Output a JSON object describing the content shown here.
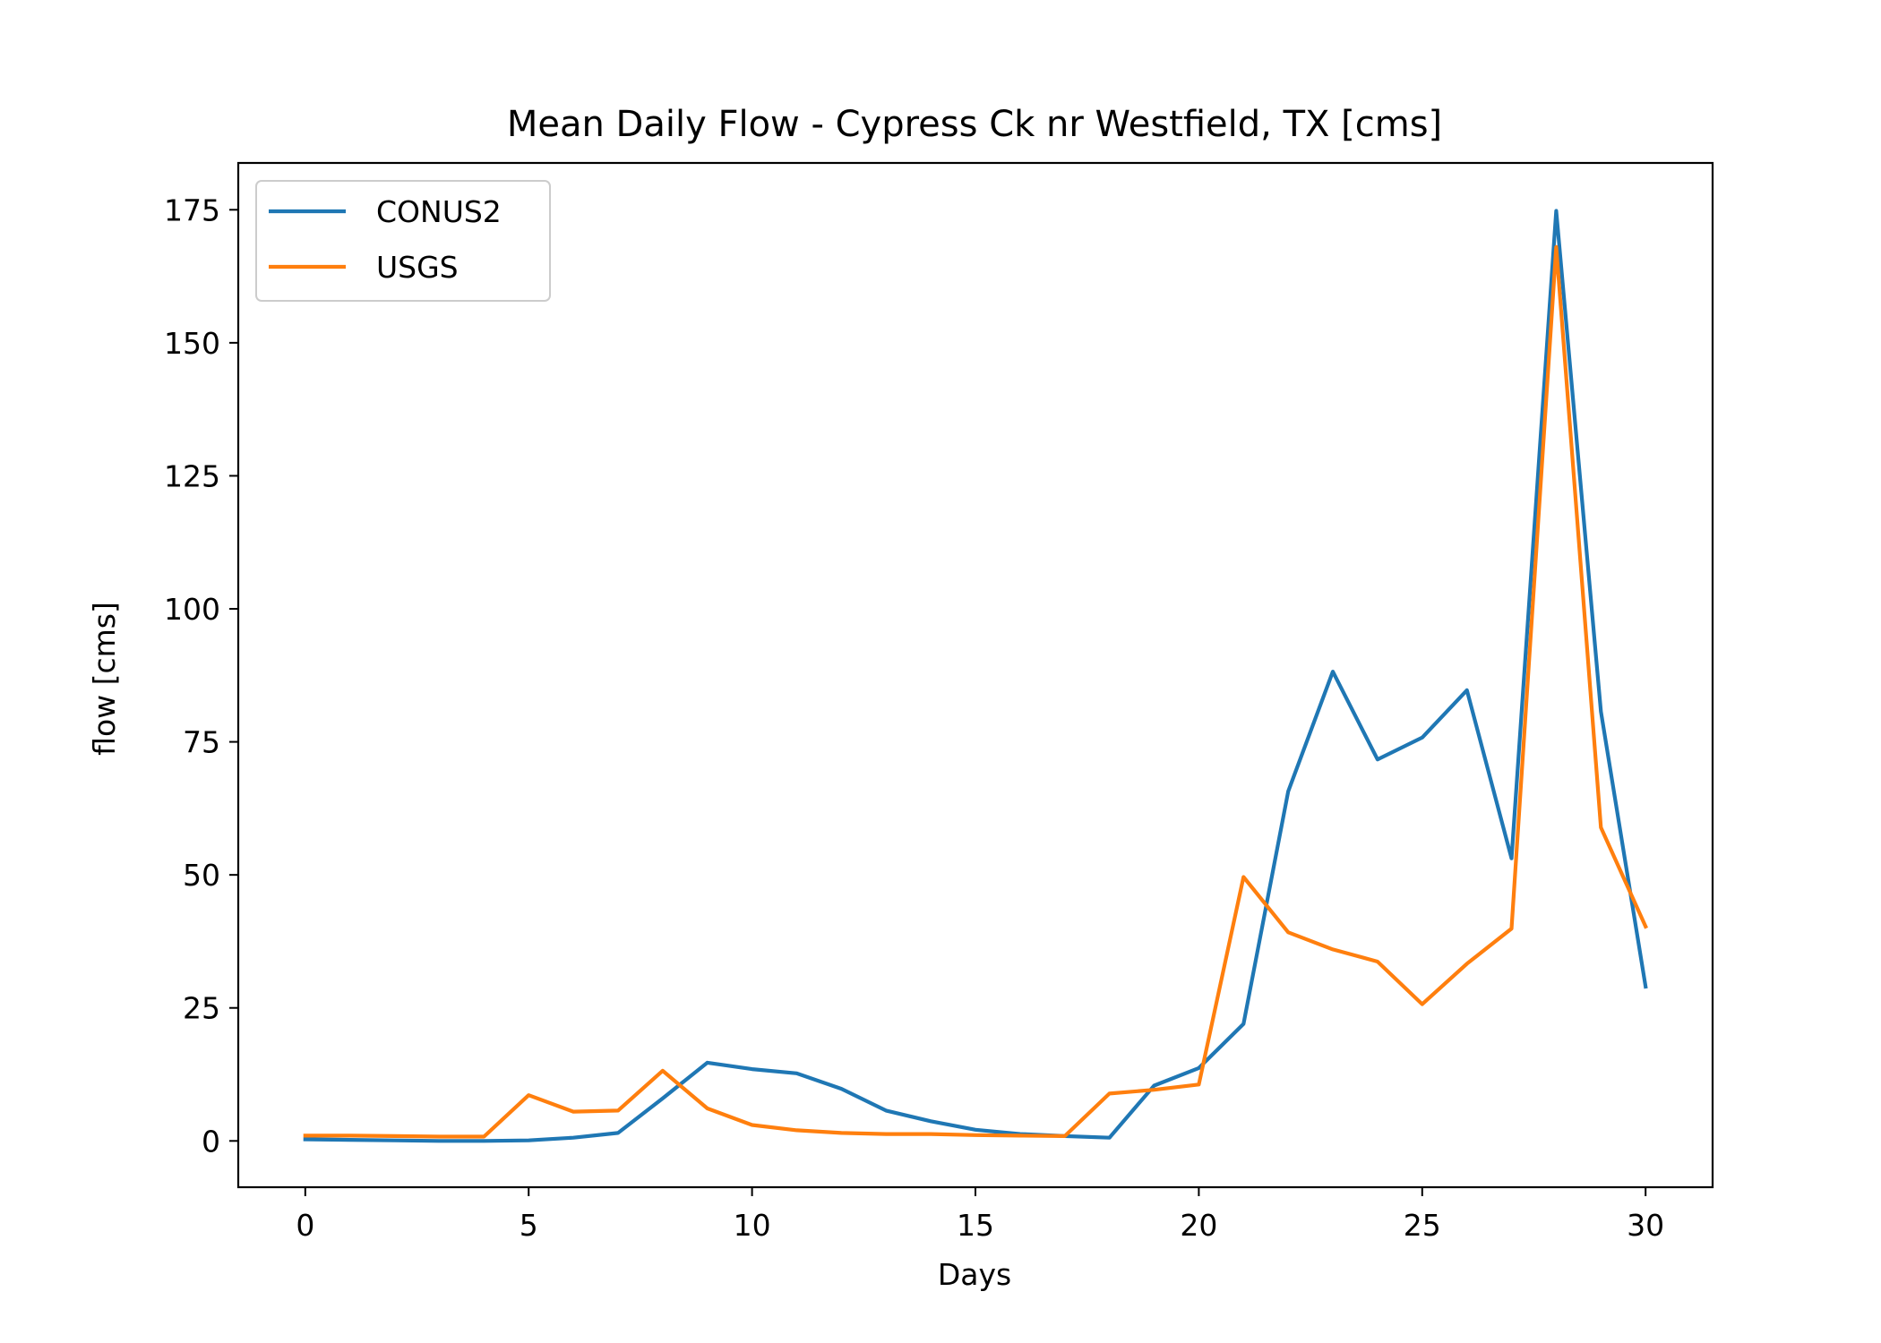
{
  "chart_data": {
    "type": "line",
    "title": "Mean Daily Flow - Cypress Ck nr Westfield, TX [cms]",
    "xlabel": "Days",
    "ylabel": "flow [cms]",
    "xlim": [
      -1.5,
      31.5
    ],
    "ylim": [
      -8.7,
      183.8
    ],
    "xticks": [
      0,
      5,
      10,
      15,
      20,
      25,
      30
    ],
    "yticks": [
      0,
      25,
      50,
      75,
      100,
      125,
      150,
      175
    ],
    "grid": false,
    "legend_position": "upper-left",
    "x": [
      0,
      1,
      2,
      3,
      4,
      5,
      6,
      7,
      8,
      9,
      10,
      11,
      12,
      13,
      14,
      15,
      16,
      17,
      18,
      19,
      20,
      21,
      22,
      23,
      24,
      25,
      26,
      27,
      28,
      29,
      30
    ],
    "series": [
      {
        "name": "CONUS2",
        "color": "#1f77b4",
        "values": [
          0.3,
          0.2,
          0.1,
          0.0,
          0.0,
          0.1,
          0.6,
          1.5,
          8.0,
          14.7,
          13.5,
          12.7,
          9.8,
          5.7,
          3.7,
          2.1,
          1.3,
          0.9,
          0.6,
          10.4,
          13.7,
          22.0,
          65.7,
          88.2,
          71.7,
          75.8,
          84.7,
          53.1,
          174.8,
          80.7,
          29.0
        ]
      },
      {
        "name": "USGS",
        "color": "#ff7f0e",
        "values": [
          1.0,
          1.0,
          0.9,
          0.8,
          0.8,
          8.6,
          5.5,
          5.7,
          13.2,
          6.1,
          3.0,
          2.0,
          1.5,
          1.3,
          1.3,
          1.1,
          1.0,
          0.9,
          8.9,
          9.6,
          10.6,
          49.6,
          39.2,
          36.0,
          33.7,
          25.7,
          33.3,
          39.9,
          168.0,
          58.9,
          40.3
        ]
      }
    ]
  }
}
